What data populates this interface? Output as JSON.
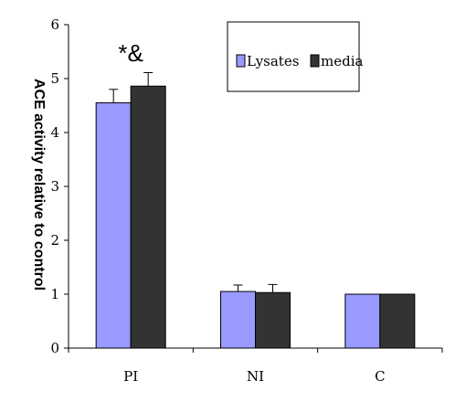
{
  "chart_data": {
    "type": "bar",
    "categories": [
      "PI",
      "NI",
      "C"
    ],
    "series": [
      {
        "name": "Lysates",
        "values": [
          4.55,
          1.05,
          1.0
        ],
        "errors": [
          0.25,
          0.12,
          0.0
        ],
        "color": "#9999ff"
      },
      {
        "name": "media",
        "values": [
          4.86,
          1.03,
          1.0
        ],
        "errors": [
          0.25,
          0.15,
          0.0
        ],
        "color": "#333333"
      }
    ],
    "ylabel": "ACE activity relative to control",
    "xlabel": "",
    "ylim": [
      0,
      6
    ],
    "yticks": [
      0,
      1,
      2,
      3,
      4,
      5,
      6
    ],
    "legend_position": "top-right",
    "annotation": {
      "text": "*&",
      "category": "PI"
    },
    "grid": false
  }
}
